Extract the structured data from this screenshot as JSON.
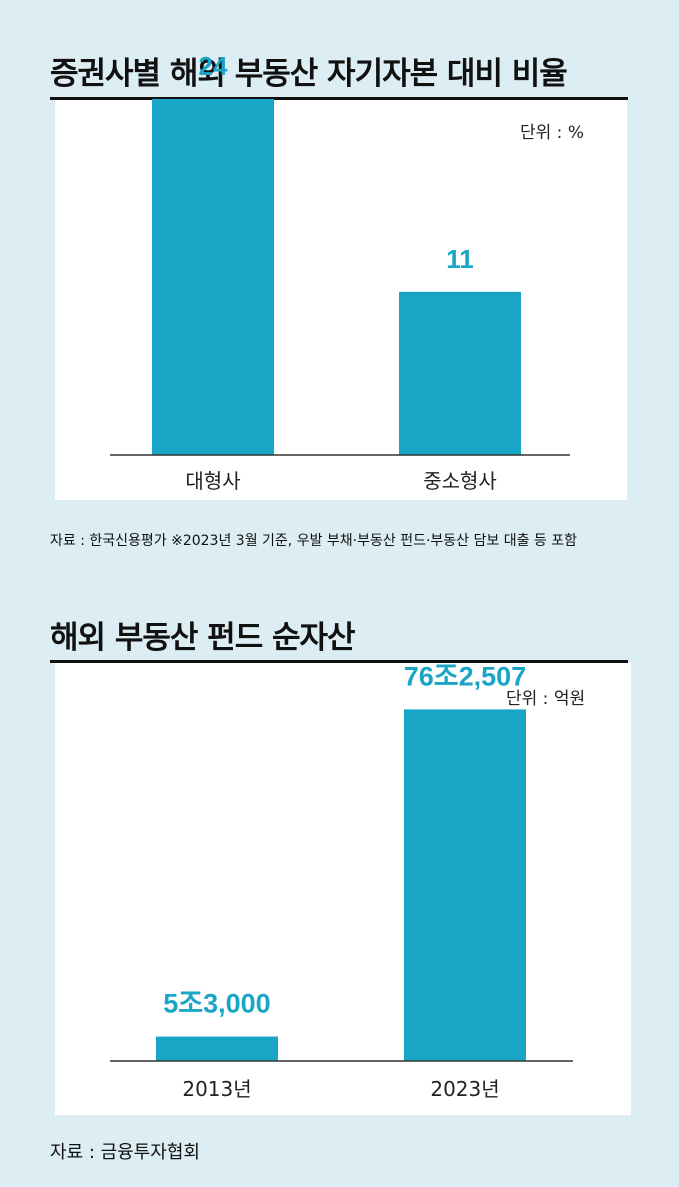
{
  "chart_data": [
    {
      "type": "bar",
      "title": "증권사별 해외 부동산 자기자본 대비 비율",
      "unit_label": "단위 : %",
      "categories": [
        "대형사",
        "중소형사"
      ],
      "values": [
        24,
        11
      ],
      "value_labels": [
        "24",
        "11"
      ],
      "ylim": [
        0,
        30
      ],
      "source": "자료 : 한국신용평가  ※2023년 3월 기준, 우발 부채·부동산 펀드·부동산 담보 대출 등 포함",
      "bar_color": "#19a6c6"
    },
    {
      "type": "bar",
      "title": "해외 부동산 펀드 순자산",
      "unit_label": "단위 : 억원",
      "categories": [
        "2013년",
        "2023년"
      ],
      "values": [
        53000,
        762507
      ],
      "value_labels": [
        "5조3,000",
        "76조2,507"
      ],
      "ylim": [
        0,
        900000
      ],
      "source": "자료 : 금융투자협회",
      "bar_color": "#19a6c6"
    }
  ]
}
